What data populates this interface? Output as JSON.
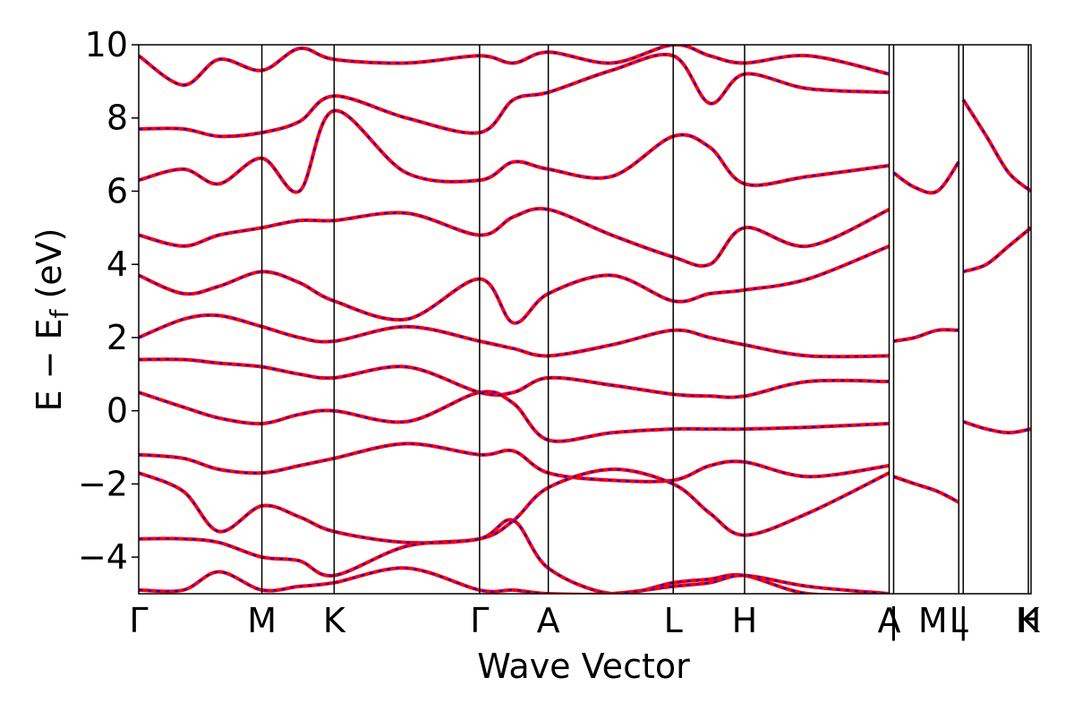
{
  "chart_data": {
    "type": "line",
    "title": "",
    "xlabel": "Wave Vector",
    "ylabel_parts": {
      "main": "E − E",
      "sub": "f",
      "unit": " (eV)"
    },
    "ylim": [
      -5,
      10
    ],
    "yticks": [
      10,
      8,
      6,
      4,
      2,
      0,
      -2,
      -4
    ],
    "ytick_labels": [
      "10",
      "8",
      "6",
      "4",
      "2",
      "0",
      "−2",
      "−4"
    ],
    "xlim": [
      0,
      1
    ],
    "xticks": [
      0.0,
      0.138,
      0.219,
      0.382,
      0.459,
      0.599,
      0.679,
      0.841,
      0.919,
      0.997
    ],
    "xtick_labels": [
      "Γ",
      "M",
      "K",
      "Γ",
      "A",
      "L",
      "H",
      "A",
      "L",
      "K"
    ],
    "xtick_labels_extra": [
      "|",
      "M",
      "|",
      "H"
    ],
    "segments": [
      "Γ-M-K-Γ-A-L-H-A",
      "L-M",
      "K-H"
    ],
    "grid": false,
    "legend": "none",
    "colors": {
      "series_solid": "#ff0000",
      "series_dashed": "#0000ff",
      "kpath_lines": "#000000"
    },
    "series": [
      {
        "style": "solid-red",
        "bands": [
          {
            "x": [
              0.0,
              0.05,
              0.09,
              0.138,
              0.18,
              0.219,
              0.3,
              0.382,
              0.42,
              0.459,
              0.53,
              0.599,
              0.64,
              0.679,
              0.75,
              0.841
            ],
            "y": [
              0.5,
              0.1,
              -0.2,
              -0.35,
              -0.1,
              0.0,
              -0.3,
              0.5,
              0.2,
              -0.8,
              -0.6,
              -0.5,
              -0.5,
              -0.5,
              -0.45,
              -0.35
            ]
          },
          {
            "x": [
              0.0,
              0.05,
              0.09,
              0.138,
              0.18,
              0.219,
              0.3,
              0.382,
              0.42,
              0.459,
              0.53,
              0.599,
              0.64,
              0.679,
              0.75,
              0.841
            ],
            "y": [
              -1.2,
              -1.3,
              -1.6,
              -1.7,
              -1.5,
              -1.3,
              -0.9,
              -1.2,
              -1.1,
              -1.7,
              -1.9,
              -1.9,
              -1.5,
              -1.4,
              -1.8,
              -1.5
            ]
          },
          {
            "x": [
              0.0,
              0.05,
              0.09,
              0.138,
              0.18,
              0.219,
              0.3,
              0.382,
              0.42,
              0.459,
              0.53,
              0.599,
              0.64,
              0.679,
              0.75,
              0.841
            ],
            "y": [
              -1.7,
              -2.2,
              -3.3,
              -2.6,
              -2.9,
              -3.3,
              -3.6,
              -3.5,
              -3.0,
              -2.1,
              -1.6,
              -2.0,
              -2.8,
              -3.4,
              -2.8,
              -1.7
            ]
          },
          {
            "x": [
              0.0,
              0.05,
              0.09,
              0.138,
              0.18,
              0.219,
              0.3,
              0.382,
              0.42,
              0.459,
              0.53,
              0.599,
              0.64,
              0.679,
              0.75,
              0.841
            ],
            "y": [
              1.4,
              1.4,
              1.3,
              1.2,
              1.0,
              0.9,
              1.2,
              0.5,
              0.5,
              0.9,
              0.7,
              0.45,
              0.4,
              0.4,
              0.8,
              0.8
            ]
          },
          {
            "x": [
              0.0,
              0.05,
              0.09,
              0.138,
              0.18,
              0.219,
              0.3,
              0.382,
              0.42,
              0.459,
              0.53,
              0.599,
              0.64,
              0.679,
              0.75,
              0.841
            ],
            "y": [
              2.0,
              2.5,
              2.6,
              2.3,
              2.0,
              1.9,
              2.3,
              1.9,
              1.7,
              1.5,
              1.8,
              2.2,
              2.0,
              1.8,
              1.5,
              1.5
            ]
          },
          {
            "x": [
              0.0,
              0.05,
              0.09,
              0.138,
              0.18,
              0.219,
              0.3,
              0.382,
              0.42,
              0.459,
              0.53,
              0.599,
              0.64,
              0.679,
              0.75,
              0.841
            ],
            "y": [
              3.7,
              3.2,
              3.4,
              3.8,
              3.5,
              3.0,
              2.5,
              3.6,
              2.4,
              3.2,
              3.7,
              3.0,
              3.2,
              3.3,
              3.6,
              4.5
            ]
          },
          {
            "x": [
              0.0,
              0.05,
              0.09,
              0.138,
              0.18,
              0.219,
              0.3,
              0.382,
              0.42,
              0.459,
              0.53,
              0.599,
              0.64,
              0.679,
              0.75,
              0.841
            ],
            "y": [
              4.8,
              4.5,
              4.8,
              5.0,
              5.2,
              5.2,
              5.4,
              4.8,
              5.3,
              5.5,
              4.8,
              4.2,
              4.0,
              5.0,
              4.5,
              5.5
            ]
          },
          {
            "x": [
              0.0,
              0.05,
              0.09,
              0.138,
              0.18,
              0.219,
              0.3,
              0.382,
              0.42,
              0.459,
              0.53,
              0.599,
              0.64,
              0.679,
              0.75,
              0.841
            ],
            "y": [
              6.3,
              6.6,
              6.2,
              6.9,
              6.0,
              8.2,
              6.5,
              6.3,
              6.8,
              6.6,
              6.4,
              7.5,
              7.2,
              6.2,
              6.4,
              6.7
            ]
          },
          {
            "x": [
              0.0,
              0.05,
              0.09,
              0.138,
              0.18,
              0.219,
              0.3,
              0.382,
              0.42,
              0.459,
              0.53,
              0.599,
              0.64,
              0.679,
              0.75,
              0.841
            ],
            "y": [
              7.7,
              7.7,
              7.5,
              7.6,
              7.9,
              8.6,
              8.0,
              7.6,
              8.5,
              8.7,
              9.3,
              9.7,
              8.4,
              9.2,
              8.8,
              8.7
            ]
          },
          {
            "x": [
              0.0,
              0.05,
              0.09,
              0.138,
              0.18,
              0.219,
              0.3,
              0.382,
              0.42,
              0.459,
              0.53,
              0.599,
              0.64,
              0.679,
              0.75,
              0.841
            ],
            "y": [
              9.7,
              8.9,
              9.6,
              9.3,
              9.9,
              9.6,
              9.5,
              9.7,
              9.5,
              9.8,
              9.5,
              10.0,
              9.7,
              9.5,
              9.7,
              9.2
            ]
          },
          {
            "x": [
              0.0,
              0.05,
              0.09,
              0.138,
              0.18,
              0.219,
              0.3,
              0.382,
              0.42,
              0.459,
              0.53,
              0.599,
              0.64,
              0.679,
              0.75,
              0.841
            ],
            "y": [
              -3.5,
              -3.5,
              -3.6,
              -4.0,
              -4.1,
              -4.5,
              -3.7,
              -3.5,
              -3.0,
              -4.3,
              -5.0,
              -4.7,
              -4.6,
              -4.5,
              -5.0,
              -5.0
            ]
          },
          {
            "x": [
              0.0,
              0.05,
              0.09,
              0.138,
              0.18,
              0.219,
              0.3,
              0.382,
              0.42,
              0.459,
              0.53,
              0.599,
              0.64,
              0.679,
              0.75,
              0.841
            ],
            "y": [
              -4.9,
              -4.9,
              -4.4,
              -4.9,
              -4.8,
              -4.7,
              -4.3,
              -4.9,
              -4.9,
              -5.0,
              -5.0,
              -4.8,
              -4.7,
              -4.5,
              -4.8,
              -5.0
            ]
          },
          {
            "x": [
              0.846,
              0.87,
              0.895,
              0.919
            ],
            "y": [
              1.9,
              2.0,
              2.2,
              2.2
            ]
          },
          {
            "x": [
              0.846,
              0.87,
              0.895,
              0.919
            ],
            "y": [
              -1.8,
              -2.0,
              -2.2,
              -2.5
            ]
          },
          {
            "x": [
              0.846,
              0.87,
              0.895,
              0.919
            ],
            "y": [
              6.5,
              6.1,
              6.0,
              6.8
            ]
          },
          {
            "x": [
              0.924,
              0.95,
              0.975,
              1.0
            ],
            "y": [
              -0.3,
              -0.5,
              -0.6,
              -0.5
            ]
          },
          {
            "x": [
              0.924,
              0.95,
              0.975,
              1.0
            ],
            "y": [
              3.8,
              4.0,
              4.5,
              5.0
            ]
          },
          {
            "x": [
              0.924,
              0.95,
              0.975,
              1.0
            ],
            "y": [
              8.5,
              7.5,
              6.5,
              6.0
            ]
          }
        ]
      },
      {
        "style": "dashed-blue",
        "bands": "same as solid-red (overlaid, identical curves)"
      }
    ]
  }
}
